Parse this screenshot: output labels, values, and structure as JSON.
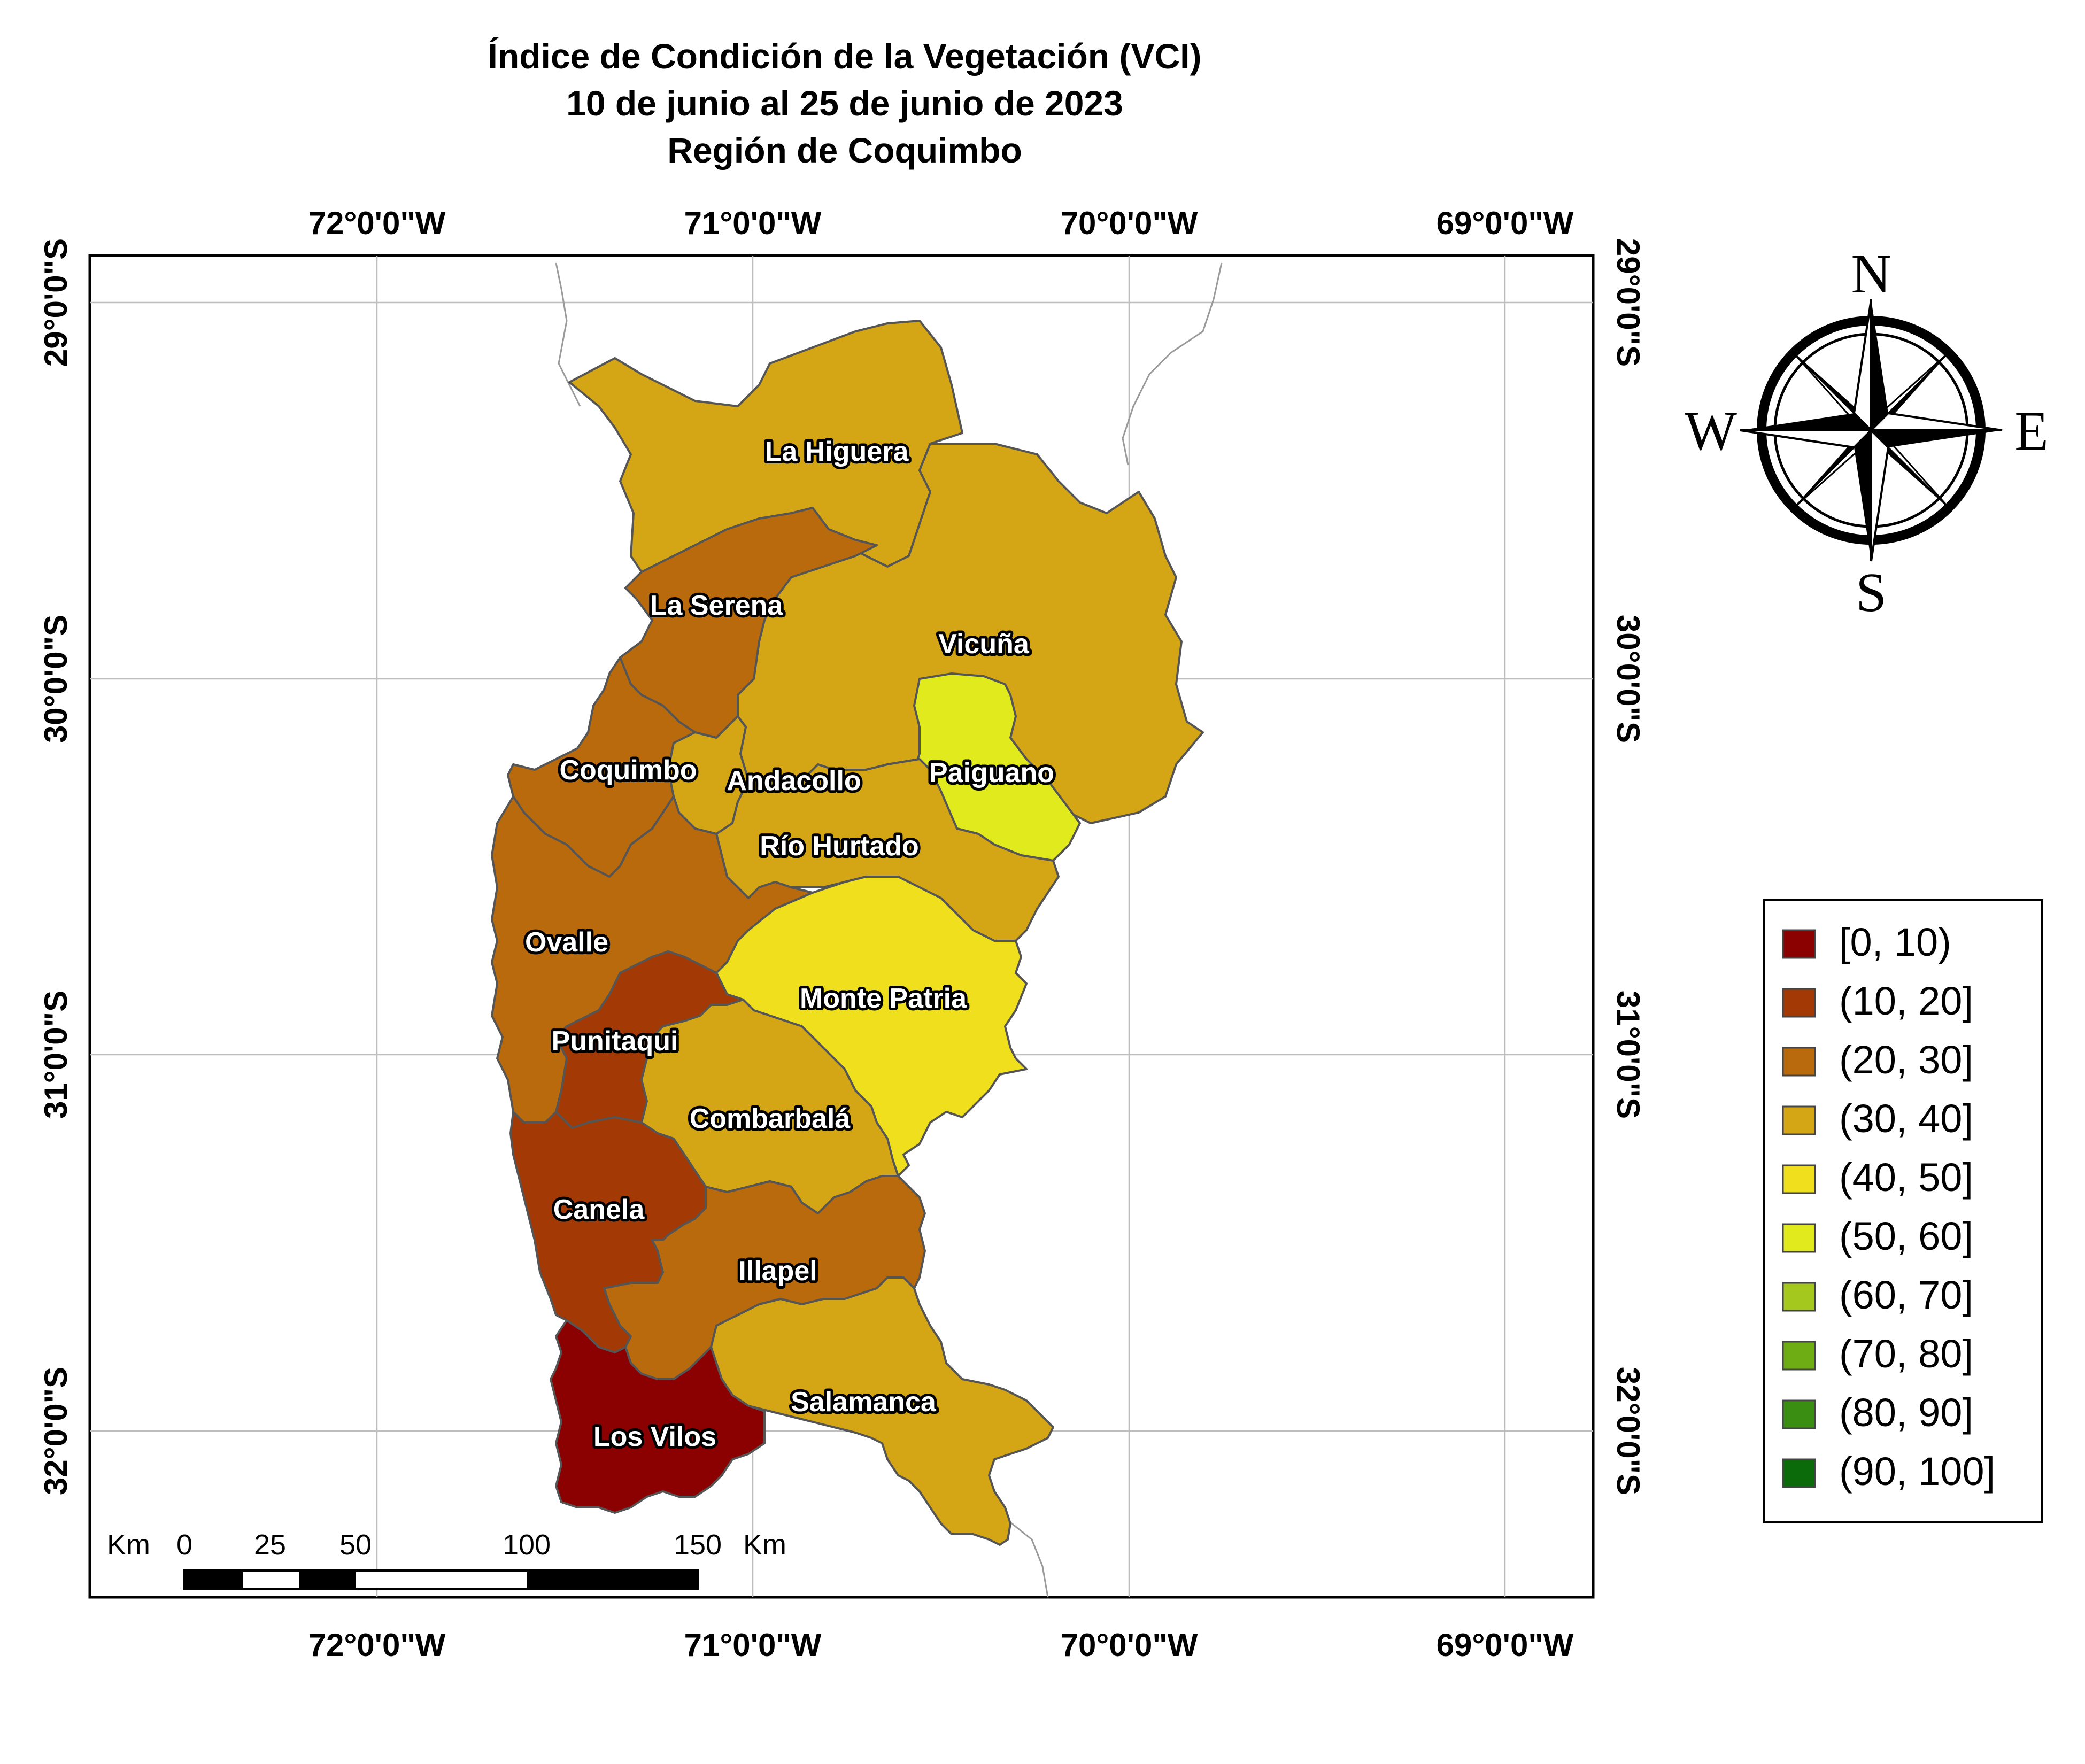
{
  "title": {
    "line1": "Índice de Condición de la Vegetación (VCI)",
    "line2": "10 de junio al 25 de junio de 2023",
    "line3": "Región de Coquimbo"
  },
  "graticule": {
    "longitudes": [
      "72°0'0\"W",
      "71°0'0\"W",
      "70°0'0\"W",
      "69°0'0\"W"
    ],
    "latitudes": [
      "29°0'0\"S",
      "30°0'0\"S",
      "31°0'0\"S",
      "32°0'0\"S"
    ]
  },
  "communes": [
    {
      "name": "La Higuera",
      "class": "(30, 40]"
    },
    {
      "name": "La Serena",
      "class": "(20, 30]"
    },
    {
      "name": "Vicuña",
      "class": "(30, 40]"
    },
    {
      "name": "Paiguano",
      "class": "(50, 60]"
    },
    {
      "name": "Coquimbo",
      "class": "(20, 30]"
    },
    {
      "name": "Andacollo",
      "class": "(30, 40]"
    },
    {
      "name": "Río Hurtado",
      "class": "(30, 40]"
    },
    {
      "name": "Ovalle",
      "class": "(20, 30]"
    },
    {
      "name": "Monte Patria",
      "class": "(40, 50]"
    },
    {
      "name": "Punitaqui",
      "class": "(10, 20]"
    },
    {
      "name": "Combarbalá",
      "class": "(30, 40]"
    },
    {
      "name": "Canela",
      "class": "(10, 20]"
    },
    {
      "name": "Illapel",
      "class": "(20, 30]"
    },
    {
      "name": "Salamanca",
      "class": "(30, 40]"
    },
    {
      "name": "Los Vilos",
      "class": "[0, 10)"
    }
  ],
  "legend": [
    {
      "label": "[0, 10)",
      "color": "#8b0000"
    },
    {
      "label": "(10, 20]",
      "color": "#a33a05"
    },
    {
      "label": "(20, 30]",
      "color": "#b96a0c"
    },
    {
      "label": "(30, 40]",
      "color": "#d4a514"
    },
    {
      "label": "(40, 50]",
      "color": "#efdf1c"
    },
    {
      "label": "(50, 60]",
      "color": "#e1ea1c"
    },
    {
      "label": "(60, 70]",
      "color": "#a5c81f"
    },
    {
      "label": "(70, 80]",
      "color": "#6fad14"
    },
    {
      "label": "(80, 90]",
      "color": "#3a8f12"
    },
    {
      "label": "(90, 100]",
      "color": "#0b6b0b"
    }
  ],
  "scale_bar": {
    "unit_left": "Km",
    "ticks": [
      "0",
      "25",
      "50",
      "100",
      "150"
    ],
    "unit_right": "Km"
  },
  "compass": {
    "n": "N",
    "s": "S",
    "e": "E",
    "w": "W"
  }
}
